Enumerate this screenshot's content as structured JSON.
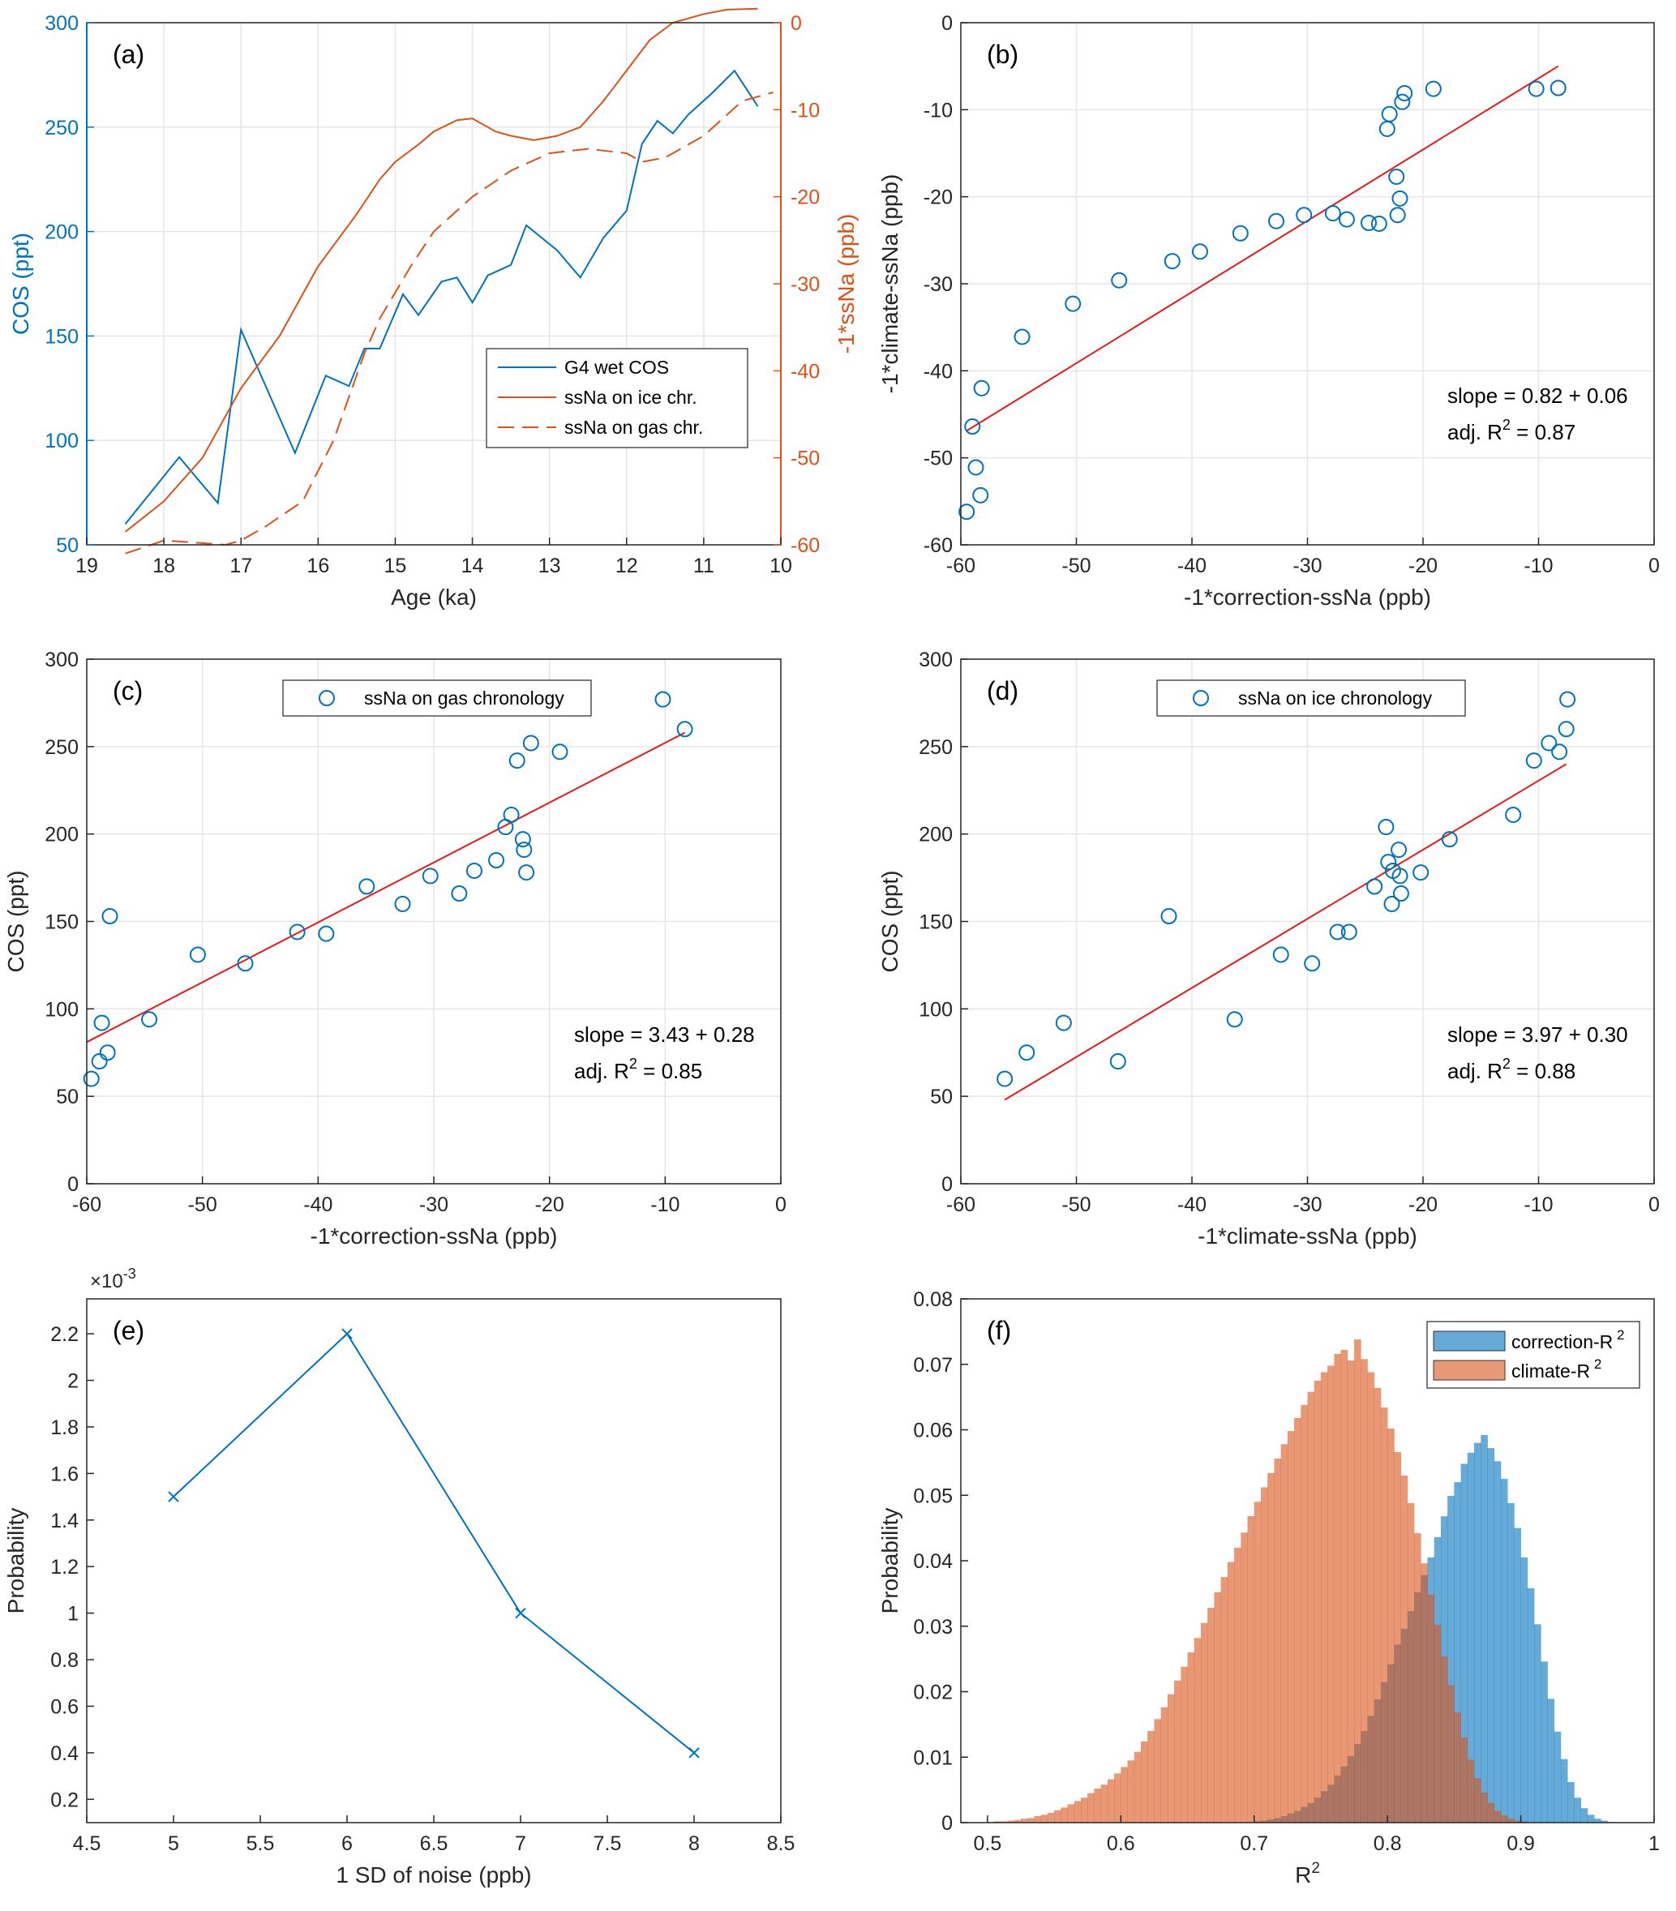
{
  "chart_data": [
    {
      "id": "a",
      "panel_label": "(a)",
      "type": "line",
      "xlabel": "Age (ka)",
      "ylabel": "COS (ppt)",
      "y2label": "-1*ssNa (ppb)",
      "xlim": [
        19,
        10
      ],
      "x_reversed": true,
      "ylim": [
        50,
        300
      ],
      "y2lim": [
        -60,
        0
      ],
      "xticks": [
        19,
        18,
        17,
        16,
        15,
        14,
        13,
        12,
        11,
        10
      ],
      "yticks": [
        50,
        100,
        150,
        200,
        250,
        300
      ],
      "y2ticks": [
        -60,
        -50,
        -40,
        -30,
        -20,
        -10,
        0
      ],
      "grid": true,
      "legend_position": "center-right",
      "colors": {
        "cos": "#0072BD",
        "ssna": "#D95319",
        "axis2": "#D95319"
      },
      "series": [
        {
          "name": "G4 wet COS",
          "axis": "left",
          "style": "solid",
          "color": "#0072BD",
          "x": [
            18.5,
            17.8,
            17.3,
            17.0,
            16.3,
            15.9,
            15.6,
            15.4,
            15.2,
            14.9,
            14.7,
            14.4,
            14.2,
            14.0,
            13.8,
            13.5,
            13.3,
            12.9,
            12.6,
            12.3,
            12.0,
            11.8,
            11.6,
            11.4,
            11.2,
            10.9,
            10.6,
            10.3
          ],
          "y": [
            60,
            92,
            70,
            153,
            94,
            131,
            126,
            144,
            144,
            170,
            160,
            176,
            178,
            166,
            179,
            184,
            203,
            191,
            178,
            197,
            210,
            242,
            253,
            247,
            256,
            266,
            277,
            260
          ]
        },
        {
          "name": "ssNa on ice chr.",
          "axis": "right",
          "style": "solid",
          "color": "#D95319",
          "x": [
            18.5,
            18.0,
            17.5,
            17.0,
            16.5,
            16.0,
            15.5,
            15.2,
            15.0,
            14.7,
            14.5,
            14.2,
            14.0,
            13.7,
            13.5,
            13.2,
            12.9,
            12.6,
            12.3,
            12.0,
            11.7,
            11.4,
            11.0,
            10.7,
            10.3
          ],
          "y": [
            -58.5,
            -55,
            -50,
            -42,
            -36,
            -28,
            -22,
            -18,
            -16,
            -14,
            -12.5,
            -11.2,
            -11.0,
            -12.5,
            -13.0,
            -13.5,
            -13.0,
            -12.0,
            -9.0,
            -5.5,
            -2.0,
            0.0,
            1.0,
            1.5,
            1.6
          ]
        },
        {
          "name": "ssNa on gas chr.",
          "axis": "right",
          "style": "dashed",
          "color": "#D95319",
          "x": [
            18.5,
            18.0,
            17.5,
            17.2,
            17.0,
            16.7,
            16.2,
            15.8,
            15.4,
            15.2,
            14.8,
            14.5,
            14.0,
            13.5,
            13.0,
            12.5,
            12.0,
            11.8,
            11.5,
            11.0,
            10.5,
            10.1
          ],
          "y": [
            -61,
            -59.5,
            -59.8,
            -60,
            -59.5,
            -58,
            -55,
            -48,
            -38,
            -34,
            -28,
            -24,
            -20,
            -17,
            -15,
            -14.5,
            -15,
            -16,
            -15.5,
            -13,
            -9,
            -8
          ]
        }
      ]
    },
    {
      "id": "b",
      "panel_label": "(b)",
      "type": "scatter",
      "xlabel": "-1*correction-ssNa (ppb)",
      "ylabel": "-1*climate-ssNa (ppb)",
      "xlim": [
        -60,
        0
      ],
      "ylim": [
        -60,
        0
      ],
      "xticks": [
        -60,
        -50,
        -40,
        -30,
        -20,
        -10,
        0
      ],
      "yticks": [
        -60,
        -50,
        -40,
        -30,
        -20,
        -10,
        0
      ],
      "grid": true,
      "annotations": {
        "slope": "slope = 0.82 + 0.06",
        "r2_prefix": "adj. R",
        "r2_sup": "2",
        "r2_suffix": " = 0.87"
      },
      "points": {
        "x": [
          -59.5,
          -59.0,
          -58.7,
          -58.3,
          -58.2,
          -54.7,
          -50.3,
          -46.3,
          -41.7,
          -39.3,
          -35.8,
          -32.7,
          -30.3,
          -27.8,
          -26.6,
          -24.7,
          -23.8,
          -23.1,
          -22.9,
          -22.3,
          -22.2,
          -22.0,
          -21.8,
          -21.6,
          -19.1,
          -10.2,
          -8.3
        ],
        "y": [
          -56.2,
          -46.4,
          -51.1,
          -54.3,
          -42.0,
          -36.1,
          -32.3,
          -29.6,
          -27.4,
          -26.3,
          -24.2,
          -22.8,
          -22.1,
          -21.9,
          -22.6,
          -23.0,
          -23.1,
          -12.2,
          -10.5,
          -17.7,
          -22.1,
          -20.2,
          -9.1,
          -8.1,
          -7.6,
          -7.6,
          -7.5
        ]
      },
      "fit": {
        "x": [
          -59.5,
          -8.3
        ],
        "y": [
          -46.9,
          -5.0
        ]
      }
    },
    {
      "id": "c",
      "panel_label": "(c)",
      "type": "scatter",
      "xlabel": "-1*correction-ssNa (ppb)",
      "ylabel": "COS (ppt)",
      "xlim": [
        -60,
        0
      ],
      "ylim": [
        0,
        300
      ],
      "xticks": [
        -60,
        -50,
        -40,
        -30,
        -20,
        -10,
        0
      ],
      "yticks": [
        0,
        50,
        100,
        150,
        200,
        250,
        300
      ],
      "grid": true,
      "legend": {
        "label": "ssNa on gas chronology",
        "position": "top-center"
      },
      "annotations": {
        "slope": "slope = 3.43 + 0.28",
        "r2_prefix": "adj. R",
        "r2_sup": "2",
        "r2_suffix": " = 0.85"
      },
      "points": {
        "x": [
          -59.6,
          -58.9,
          -58.7,
          -58.2,
          -58.0,
          -54.6,
          -50.4,
          -46.3,
          -41.8,
          -39.3,
          -35.8,
          -32.7,
          -30.3,
          -27.8,
          -26.5,
          -24.6,
          -23.8,
          -23.3,
          -22.8,
          -22.3,
          -22.2,
          -22.0,
          -21.6,
          -19.1,
          -10.2,
          -8.3
        ],
        "y": [
          60,
          70,
          92,
          75,
          153,
          94,
          131,
          126,
          144,
          143,
          170,
          160,
          176,
          166,
          179,
          185,
          204,
          211,
          242,
          197,
          191,
          178,
          252,
          247,
          277,
          260
        ]
      },
      "fit": {
        "x": [
          -60,
          -8.3
        ],
        "y": [
          81,
          258
        ]
      }
    },
    {
      "id": "d",
      "panel_label": "(d)",
      "type": "scatter",
      "xlabel": "-1*climate-ssNa (ppb)",
      "ylabel": "COS (ppt)",
      "xlim": [
        -60,
        0
      ],
      "ylim": [
        0,
        300
      ],
      "xticks": [
        -60,
        -50,
        -40,
        -30,
        -20,
        -10,
        0
      ],
      "yticks": [
        0,
        50,
        100,
        150,
        200,
        250,
        300
      ],
      "grid": true,
      "legend": {
        "label": "ssNa on ice chronology",
        "position": "top-center"
      },
      "annotations": {
        "slope": "slope = 3.97 + 0.30",
        "r2_prefix": "adj. R",
        "r2_sup": "2",
        "r2_suffix": " = 0.88"
      },
      "points": {
        "x": [
          -56.2,
          -54.3,
          -51.1,
          -46.4,
          -42.0,
          -36.3,
          -32.3,
          -29.6,
          -27.4,
          -26.4,
          -24.2,
          -23.2,
          -23.0,
          -22.7,
          -22.6,
          -22.1,
          -22.0,
          -21.9,
          -20.2,
          -17.7,
          -12.2,
          -10.4,
          -9.1,
          -8.2,
          -7.6,
          -7.5
        ],
        "y": [
          60,
          75,
          92,
          70,
          153,
          94,
          131,
          126,
          144,
          144,
          170,
          204,
          184,
          160,
          179,
          191,
          176,
          166,
          178,
          197,
          211,
          242,
          252,
          247,
          260,
          277
        ]
      },
      "fit": {
        "x": [
          -56.2,
          -7.6
        ],
        "y": [
          48,
          240
        ]
      }
    },
    {
      "id": "e",
      "panel_label": "(e)",
      "type": "line",
      "xlabel": "1 SD of noise (ppb)",
      "ylabel": "Probability",
      "y_exponent_label": "×10",
      "y_exponent_sup": "-3",
      "xlim": [
        4.5,
        8.5
      ],
      "ylim": [
        0.1,
        2.35
      ],
      "xticks": [
        4.5,
        5,
        5.5,
        6,
        6.5,
        7,
        7.5,
        8,
        8.5
      ],
      "yticks": [
        0.2,
        0.4,
        0.6,
        0.8,
        1,
        1.2,
        1.4,
        1.6,
        1.8,
        2,
        2.2
      ],
      "grid": false,
      "marker": "x",
      "series": [
        {
          "name": "",
          "color": "#0072BD",
          "x": [
            5,
            6,
            7,
            8
          ],
          "y": [
            1.5,
            2.2,
            1.0,
            0.4
          ]
        }
      ]
    },
    {
      "id": "f",
      "panel_label": "(f)",
      "type": "histogram",
      "xlabel": "R",
      "xlabel_sup": "2",
      "ylabel": "Probability",
      "xlim": [
        0.48,
        1.0
      ],
      "ylim": [
        0,
        0.08
      ],
      "xticks": [
        0.5,
        0.6,
        0.7,
        0.8,
        0.9,
        1
      ],
      "yticks": [
        0,
        0.01,
        0.02,
        0.03,
        0.04,
        0.05,
        0.06,
        0.07,
        0.08
      ],
      "grid": false,
      "legend_position": "top-right",
      "series": [
        {
          "name": "correction-R",
          "name_sup": "2",
          "color": "#0072BD",
          "bin_start": 0.7,
          "bin_width": 0.005,
          "values": [
            0.0002,
            0.0003,
            0.0005,
            0.0007,
            0.001,
            0.0014,
            0.0018,
            0.0024,
            0.003,
            0.0038,
            0.0048,
            0.0058,
            0.0072,
            0.0086,
            0.0102,
            0.012,
            0.014,
            0.0163,
            0.0188,
            0.0215,
            0.0242,
            0.0272,
            0.0296,
            0.0323,
            0.0352,
            0.0378,
            0.0405,
            0.0436,
            0.0468,
            0.0499,
            0.052,
            0.0548,
            0.0565,
            0.058,
            0.0592,
            0.0572,
            0.0552,
            0.0525,
            0.0488,
            0.045,
            0.0405,
            0.0358,
            0.0303,
            0.0246,
            0.0189,
            0.0139,
            0.0097,
            0.0062,
            0.0038,
            0.0022,
            0.0012,
            0.0006,
            0.0003,
            0.0001
          ]
        },
        {
          "name": "climate-R",
          "name_sup": "2",
          "color": "#D95319",
          "bin_start": 0.5,
          "bin_width": 0.005,
          "values": [
            0.0001,
            0.0002,
            0.0002,
            0.0003,
            0.0004,
            0.0006,
            0.0007,
            0.001,
            0.0012,
            0.0015,
            0.0019,
            0.0023,
            0.0028,
            0.0033,
            0.0038,
            0.0045,
            0.0052,
            0.0058,
            0.0066,
            0.0075,
            0.0085,
            0.0095,
            0.0108,
            0.0124,
            0.014,
            0.0158,
            0.0176,
            0.0196,
            0.0217,
            0.0238,
            0.026,
            0.0282,
            0.0305,
            0.0328,
            0.0352,
            0.0375,
            0.0398,
            0.042,
            0.0443,
            0.0468,
            0.049,
            0.0512,
            0.0534,
            0.0556,
            0.0578,
            0.0598,
            0.0618,
            0.0638,
            0.0658,
            0.0675,
            0.0688,
            0.0698,
            0.0716,
            0.0722,
            0.0706,
            0.0738,
            0.0708,
            0.0688,
            0.0664,
            0.0634,
            0.0602,
            0.0566,
            0.053,
            0.0488,
            0.0442,
            0.0396,
            0.0348,
            0.0302,
            0.0254,
            0.021,
            0.0168,
            0.013,
            0.0096,
            0.0068,
            0.0046,
            0.003,
            0.0018,
            0.0011,
            0.0006,
            0.0003,
            0.0002,
            0.0001
          ]
        }
      ]
    }
  ]
}
